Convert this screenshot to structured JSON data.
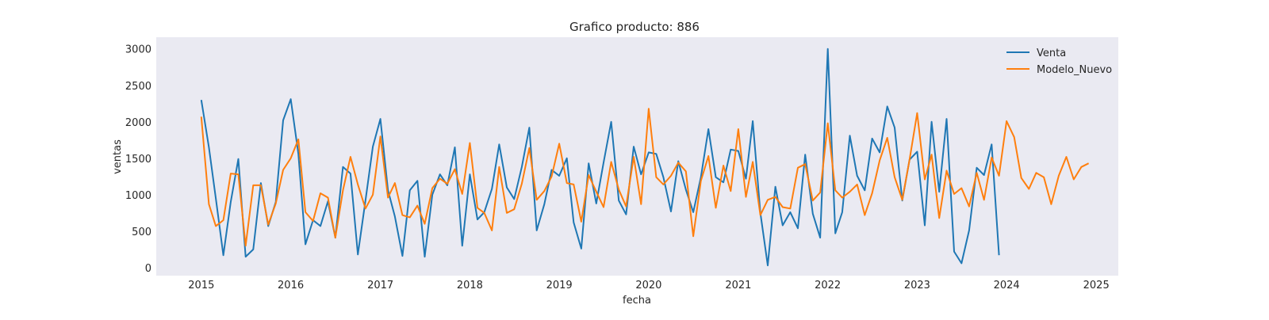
{
  "chart_data": {
    "type": "line",
    "title": "Grafico producto: 886",
    "xlabel": "fecha",
    "ylabel": "ventas",
    "x_range": [
      "2014-07-01",
      "2025-04-01"
    ],
    "ylim": [
      -110,
      3160
    ],
    "x_ticks": [
      "2015",
      "2016",
      "2017",
      "2018",
      "2019",
      "2020",
      "2021",
      "2022",
      "2023",
      "2024",
      "2025"
    ],
    "y_ticks": [
      0,
      500,
      1000,
      1500,
      2000,
      2500,
      3000
    ],
    "grid": false,
    "background": "#eaeaf2",
    "legend_position": "upper right",
    "series": [
      {
        "name": "Venta",
        "color": "#1f77b4",
        "x": [
          "2015-01-01",
          "2015-02-01",
          "2015-03-01",
          "2015-04-01",
          "2015-05-01",
          "2015-06-01",
          "2015-07-01",
          "2015-08-01",
          "2015-09-01",
          "2015-10-01",
          "2015-11-01",
          "2015-12-01",
          "2016-01-01",
          "2016-02-01",
          "2016-03-01",
          "2016-04-01",
          "2016-05-01",
          "2016-06-01",
          "2016-07-01",
          "2016-08-01",
          "2016-09-01",
          "2016-10-01",
          "2016-11-01",
          "2016-12-01",
          "2017-01-01",
          "2017-02-01",
          "2017-03-01",
          "2017-04-01",
          "2017-05-01",
          "2017-06-01",
          "2017-07-01",
          "2017-08-01",
          "2017-09-01",
          "2017-10-01",
          "2017-11-01",
          "2017-12-01",
          "2018-01-01",
          "2018-02-01",
          "2018-03-01",
          "2018-04-01",
          "2018-05-01",
          "2018-06-01",
          "2018-07-01",
          "2018-08-01",
          "2018-09-01",
          "2018-10-01",
          "2018-11-01",
          "2018-12-01",
          "2019-01-01",
          "2019-02-01",
          "2019-03-01",
          "2019-04-01",
          "2019-05-01",
          "2019-06-01",
          "2019-07-01",
          "2019-08-01",
          "2019-09-01",
          "2019-10-01",
          "2019-11-01",
          "2019-12-01",
          "2020-01-01",
          "2020-02-01",
          "2020-03-01",
          "2020-04-01",
          "2020-05-01",
          "2020-06-01",
          "2020-07-01",
          "2020-08-01",
          "2020-09-01",
          "2020-10-01",
          "2020-11-01",
          "2020-12-01",
          "2021-01-01",
          "2021-02-01",
          "2021-03-01",
          "2021-04-01",
          "2021-05-01",
          "2021-06-01",
          "2021-07-01",
          "2021-08-01",
          "2021-09-01",
          "2021-10-01",
          "2021-11-01",
          "2021-12-01",
          "2022-01-01",
          "2022-02-01",
          "2022-03-01",
          "2022-04-01",
          "2022-05-01",
          "2022-06-01",
          "2022-07-01",
          "2022-08-01",
          "2022-09-01",
          "2022-10-01",
          "2022-11-01",
          "2022-12-01",
          "2023-01-01",
          "2023-02-01",
          "2023-03-01",
          "2023-04-01",
          "2023-05-01",
          "2023-06-01",
          "2023-07-01",
          "2023-08-01",
          "2023-09-01",
          "2023-10-01",
          "2023-11-01",
          "2023-12-01"
        ],
        "values": [
          2300,
          1650,
          950,
          170,
          900,
          1490,
          150,
          250,
          1160,
          570,
          900,
          2020,
          2310,
          1560,
          320,
          650,
          570,
          910,
          410,
          1380,
          1290,
          180,
          920,
          1660,
          2040,
          1060,
          700,
          160,
          1060,
          1190,
          150,
          1000,
          1280,
          1130,
          1650,
          300,
          1280,
          660,
          760,
          1080,
          1690,
          1100,
          940,
          1380,
          1920,
          510,
          870,
          1340,
          1260,
          1500,
          620,
          260,
          1430,
          880,
          1440,
          2000,
          920,
          730,
          1660,
          1280,
          1580,
          1560,
          1240,
          770,
          1460,
          1070,
          760,
          1240,
          1900,
          1240,
          1170,
          1620,
          1600,
          1220,
          2010,
          750,
          30,
          1110,
          580,
          760,
          540,
          1550,
          740,
          410,
          3000,
          470,
          760,
          1810,
          1260,
          1060,
          1770,
          1580,
          2210,
          1920,
          920,
          1480,
          1590,
          580,
          2000,
          1040,
          2040,
          220,
          60,
          510,
          1370,
          1270,
          1690,
          170
        ]
      },
      {
        "name": "Modelo_Nuevo",
        "color": "#ff7f0e",
        "x": [
          "2015-01-01",
          "2015-02-01",
          "2015-03-01",
          "2015-04-01",
          "2015-05-01",
          "2015-06-01",
          "2015-07-01",
          "2015-08-01",
          "2015-09-01",
          "2015-10-01",
          "2015-11-01",
          "2015-12-01",
          "2016-01-01",
          "2016-02-01",
          "2016-03-01",
          "2016-04-01",
          "2016-05-01",
          "2016-06-01",
          "2016-07-01",
          "2016-08-01",
          "2016-09-01",
          "2016-10-01",
          "2016-11-01",
          "2016-12-01",
          "2017-01-01",
          "2017-02-01",
          "2017-03-01",
          "2017-04-01",
          "2017-05-01",
          "2017-06-01",
          "2017-07-01",
          "2017-08-01",
          "2017-09-01",
          "2017-10-01",
          "2017-11-01",
          "2017-12-01",
          "2018-01-01",
          "2018-02-01",
          "2018-03-01",
          "2018-04-01",
          "2018-05-01",
          "2018-06-01",
          "2018-07-01",
          "2018-08-01",
          "2018-09-01",
          "2018-10-01",
          "2018-11-01",
          "2018-12-01",
          "2019-01-01",
          "2019-02-01",
          "2019-03-01",
          "2019-04-01",
          "2019-05-01",
          "2019-06-01",
          "2019-07-01",
          "2019-08-01",
          "2019-09-01",
          "2019-10-01",
          "2019-11-01",
          "2019-12-01",
          "2020-01-01",
          "2020-02-01",
          "2020-03-01",
          "2020-04-01",
          "2020-05-01",
          "2020-06-01",
          "2020-07-01",
          "2020-08-01",
          "2020-09-01",
          "2020-10-01",
          "2020-11-01",
          "2020-12-01",
          "2021-01-01",
          "2021-02-01",
          "2021-03-01",
          "2021-04-01",
          "2021-05-01",
          "2021-06-01",
          "2021-07-01",
          "2021-08-01",
          "2021-09-01",
          "2021-10-01",
          "2021-11-01",
          "2021-12-01",
          "2022-01-01",
          "2022-02-01",
          "2022-03-01",
          "2022-04-01",
          "2022-05-01",
          "2022-06-01",
          "2022-07-01",
          "2022-08-01",
          "2022-09-01",
          "2022-10-01",
          "2022-11-01",
          "2022-12-01",
          "2023-01-01",
          "2023-02-01",
          "2023-03-01",
          "2023-04-01",
          "2023-05-01",
          "2023-06-01",
          "2023-07-01",
          "2023-08-01",
          "2023-09-01",
          "2023-10-01",
          "2023-11-01",
          "2023-12-01",
          "2024-01-01",
          "2024-02-01",
          "2024-03-01",
          "2024-04-01",
          "2024-05-01",
          "2024-06-01",
          "2024-07-01",
          "2024-08-01",
          "2024-09-01",
          "2024-10-01",
          "2024-11-01",
          "2024-12-01"
        ],
        "values": [
          2070,
          870,
          570,
          650,
          1290,
          1280,
          300,
          1130,
          1130,
          590,
          880,
          1340,
          1500,
          1760,
          760,
          640,
          1020,
          960,
          410,
          1060,
          1520,
          1140,
          810,
          1000,
          1800,
          960,
          1160,
          720,
          690,
          850,
          600,
          1090,
          1220,
          1150,
          1350,
          1010,
          1710,
          820,
          750,
          510,
          1380,
          750,
          800,
          1150,
          1640,
          930,
          1050,
          1250,
          1700,
          1160,
          1140,
          630,
          1270,
          1040,
          830,
          1450,
          1070,
          840,
          1520,
          870,
          2180,
          1240,
          1140,
          1260,
          1440,
          1320,
          430,
          1190,
          1530,
          820,
          1400,
          1050,
          1900,
          970,
          1450,
          720,
          930,
          970,
          830,
          810,
          1370,
          1420,
          920,
          1030,
          1980,
          1060,
          960,
          1040,
          1140,
          720,
          1020,
          1470,
          1780,
          1240,
          930,
          1480,
          2120,
          1210,
          1550,
          680,
          1330,
          1010,
          1090,
          840,
          1300,
          930,
          1510,
          1260,
          2010,
          1790,
          1230,
          1080,
          1300,
          1240,
          870,
          1260,
          1520,
          1210,
          1380,
          1430
        ]
      }
    ]
  }
}
